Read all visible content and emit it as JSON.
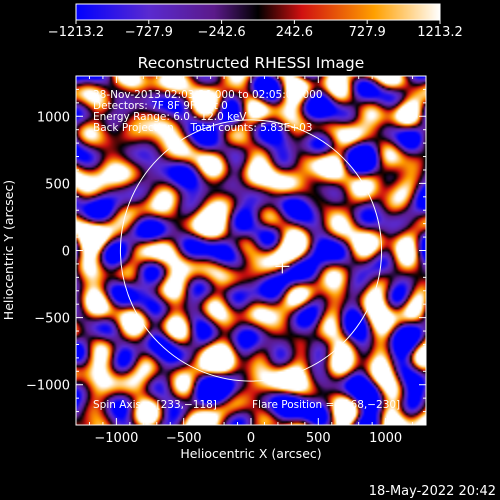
{
  "chart_data": {
    "type": "heatmap",
    "title": "Reconstructed RHESSI Image",
    "xlabel": "Heliocentric X (arcsec)",
    "ylabel": "Heliocentric Y (arcsec)",
    "xlim": [
      -1300,
      1300
    ],
    "ylim": [
      -1300,
      1300
    ],
    "xticks": [
      -1000,
      -500,
      0,
      500,
      1000
    ],
    "yticks": [
      -1000,
      -500,
      0,
      500,
      1000
    ],
    "xtick_labels": [
      "−1000",
      "−500",
      "0",
      "500",
      "1000"
    ],
    "ytick_labels": [
      "−1000",
      "−500",
      "0",
      "500",
      "1000"
    ],
    "colorbar": {
      "range": [
        -1213.2,
        1213.2
      ],
      "tick_values": [
        -1213.2,
        -727.9,
        -242.6,
        242.6,
        727.9,
        1213.2
      ],
      "tick_labels": [
        "−1213.2",
        "−727.9",
        "−242.6",
        "242.6",
        "727.9",
        "1213.2"
      ]
    },
    "annotations": [
      "28-Nov-2013 02:03:36.000 to 02:05:00.000",
      "Detectors: 7F 8F 9F, Att 0",
      "Energy Range: 6.0 - 12.0 keV",
      "Back Projection     Total counts: 5.83E+03"
    ],
    "spin_axis_label": "Spin Axis = [233,−118]",
    "flare_position_label": "Flare Position = [−68,−230]",
    "solar_disk_radius": 970,
    "disk_center": [
      0,
      0
    ],
    "crosshair": [
      233,
      -118
    ],
    "colors": {
      "background": "#000000",
      "frame": "#ffffff",
      "disk": "#ffffff"
    }
  },
  "footer": {
    "timestamp": "18-May-2022 20:42"
  }
}
